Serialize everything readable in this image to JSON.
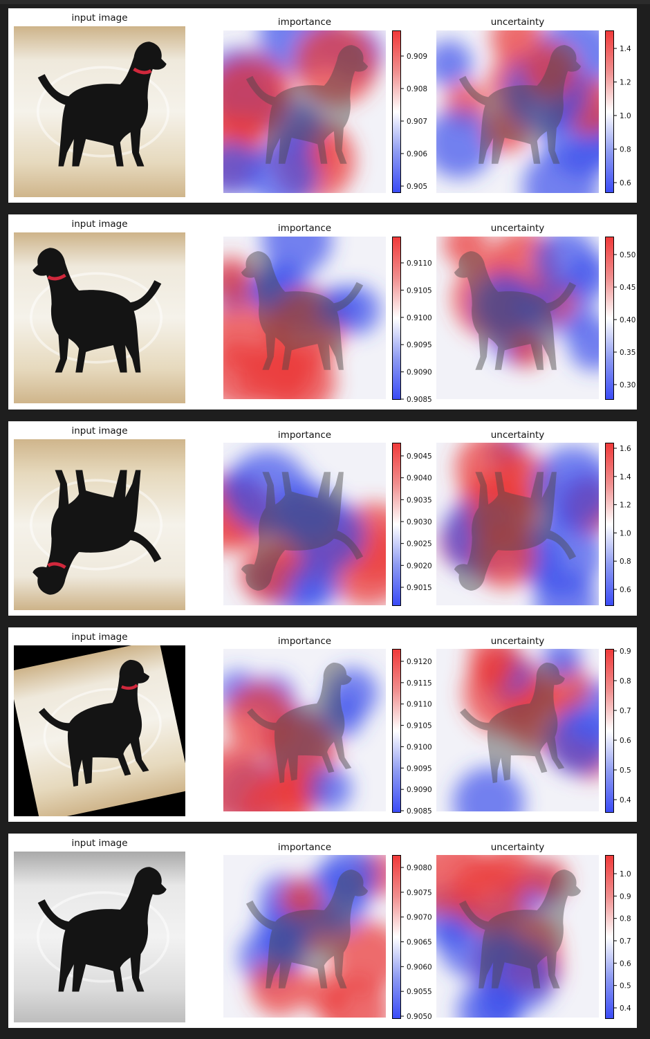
{
  "chart_data": [
    {
      "type": "heatmap",
      "titles": [
        "input image",
        "importance",
        "uncertainty"
      ],
      "variant": "original",
      "importance_ticks": [
        "0.905",
        "0.906",
        "0.907",
        "0.908",
        "0.909"
      ],
      "uncertainty_ticks": [
        "0.6",
        "0.8",
        "1.0",
        "1.2",
        "1.4"
      ]
    },
    {
      "type": "heatmap",
      "titles": [
        "input image",
        "importance",
        "uncertainty"
      ],
      "variant": "flipped",
      "importance_ticks": [
        "0.9085",
        "0.9090",
        "0.9095",
        "0.9100",
        "0.9105",
        "0.9110"
      ],
      "uncertainty_ticks": [
        "0.30",
        "0.35",
        "0.40",
        "0.45",
        "0.50"
      ]
    },
    {
      "type": "heatmap",
      "titles": [
        "input image",
        "importance",
        "uncertainty"
      ],
      "variant": "rotated180",
      "importance_ticks": [
        "0.9015",
        "0.9020",
        "0.9025",
        "0.9030",
        "0.9035",
        "0.9040",
        "0.9045"
      ],
      "uncertainty_ticks": [
        "0.6",
        "0.8",
        "1.0",
        "1.2",
        "1.4",
        "1.6"
      ]
    },
    {
      "type": "heatmap",
      "titles": [
        "input image",
        "importance",
        "uncertainty"
      ],
      "variant": "tilted",
      "importance_ticks": [
        "0.9085",
        "0.9090",
        "0.9095",
        "0.9100",
        "0.9105",
        "0.9110",
        "0.9115",
        "0.9120"
      ],
      "uncertainty_ticks": [
        "0.4",
        "0.5",
        "0.6",
        "0.7",
        "0.8",
        "0.9"
      ]
    },
    {
      "type": "heatmap",
      "titles": [
        "input image",
        "importance",
        "uncertainty"
      ],
      "variant": "grayscale",
      "importance_ticks": [
        "0.9050",
        "0.9055",
        "0.9060",
        "0.9065",
        "0.9070",
        "0.9075",
        "0.9080"
      ],
      "uncertainty_ticks": [
        "0.4",
        "0.5",
        "0.6",
        "0.7",
        "0.8",
        "0.9",
        "1.0"
      ]
    }
  ]
}
